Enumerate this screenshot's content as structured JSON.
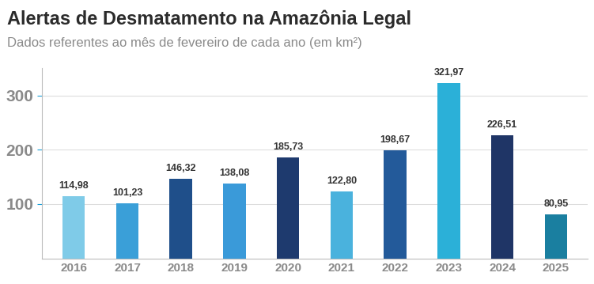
{
  "chart_data": {
    "type": "bar",
    "title": "Alertas de Desmatamento na Amazônia Legal",
    "subtitle": "Dados referentes ao mês de fevereiro de cada ano (em km²)",
    "categories": [
      "2016",
      "2017",
      "2018",
      "2019",
      "2020",
      "2021",
      "2022",
      "2023",
      "2024",
      "2025"
    ],
    "values": [
      114.98,
      101.23,
      146.32,
      138.08,
      185.73,
      122.8,
      198.67,
      321.97,
      226.51,
      80.95
    ],
    "value_labels": [
      "114,98",
      "101,23",
      "146,32",
      "138,08",
      "185,73",
      "122,80",
      "198,67",
      "321,97",
      "226,51",
      "80,95"
    ],
    "colors": [
      "#7fcbe8",
      "#3a9fd8",
      "#1f4f8a",
      "#3a9ad9",
      "#1e3a6e",
      "#4ab2dd",
      "#235a9a",
      "#2bb0d8",
      "#1f3566",
      "#1a7fa0"
    ],
    "ylim": [
      0,
      350
    ],
    "yticks": [
      100,
      200,
      300
    ],
    "grid": true,
    "data_labels": true
  }
}
